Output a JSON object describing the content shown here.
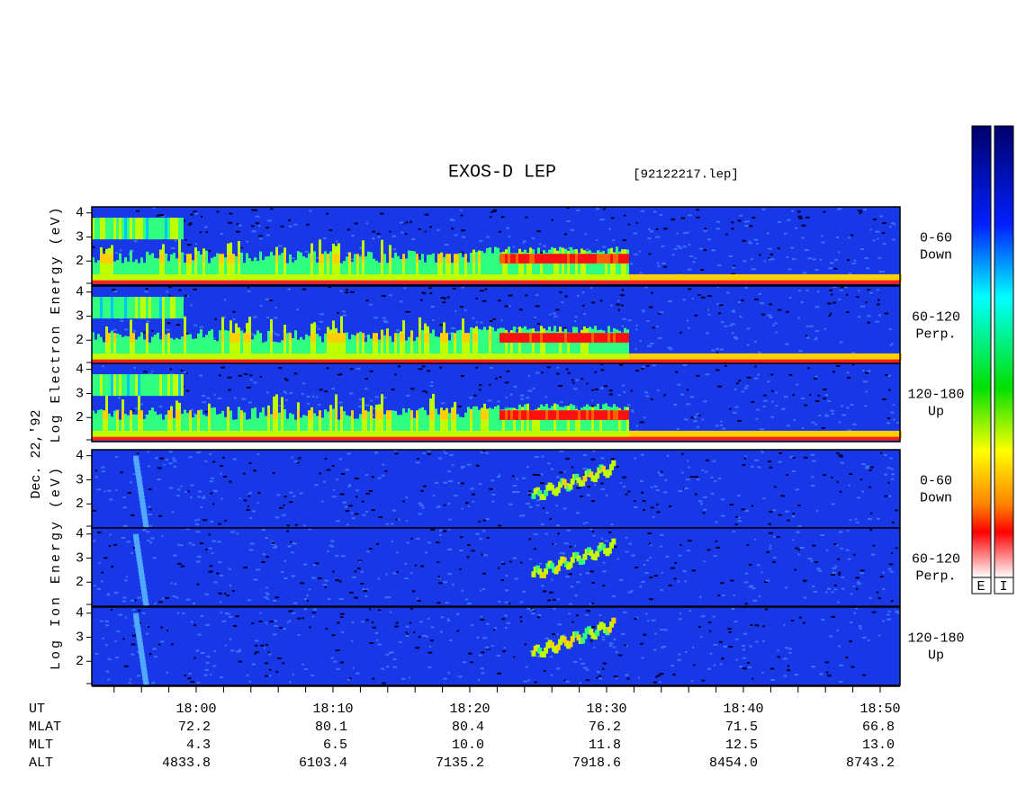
{
  "chart_data": {
    "type": "spectrogram",
    "title": "EXOS-D LEP",
    "file": "[92122217.lep]",
    "date": "Dec. 22,'92",
    "groups": [
      {
        "label": "Log Electron Energy (eV)",
        "panels": [
          {
            "angle": "0-60",
            "direction": "Down"
          },
          {
            "angle": "60-120",
            "direction": "Perp."
          },
          {
            "angle": "120-180",
            "direction": "Up"
          }
        ]
      },
      {
        "label": "Log Ion Energy (eV)",
        "panels": [
          {
            "angle": "0-60",
            "direction": "Down"
          },
          {
            "angle": "60-120",
            "direction": "Perp."
          },
          {
            "angle": "120-180",
            "direction": "Up"
          }
        ]
      }
    ],
    "ylim": [
      1,
      4.25
    ],
    "yticks": [
      2,
      3,
      4
    ],
    "xticks": [
      "18:00",
      "18:10",
      "18:20",
      "18:30",
      "18:40",
      "18:50"
    ],
    "colorbar_labels": [
      "E",
      "I"
    ],
    "ephemeris_names": [
      "UT",
      "MLAT",
      "MLT",
      "ALT"
    ],
    "ephemeris": [
      [
        "72.2",
        "80.1",
        "80.4",
        "76.2",
        "71.5",
        "66.8"
      ],
      [
        "4.3",
        "6.5",
        "10.0",
        "11.8",
        "12.5",
        "13.0"
      ],
      [
        "4833.8",
        "6103.4",
        "7135.2",
        "7918.6",
        "8454.0",
        "8743.2"
      ]
    ]
  }
}
